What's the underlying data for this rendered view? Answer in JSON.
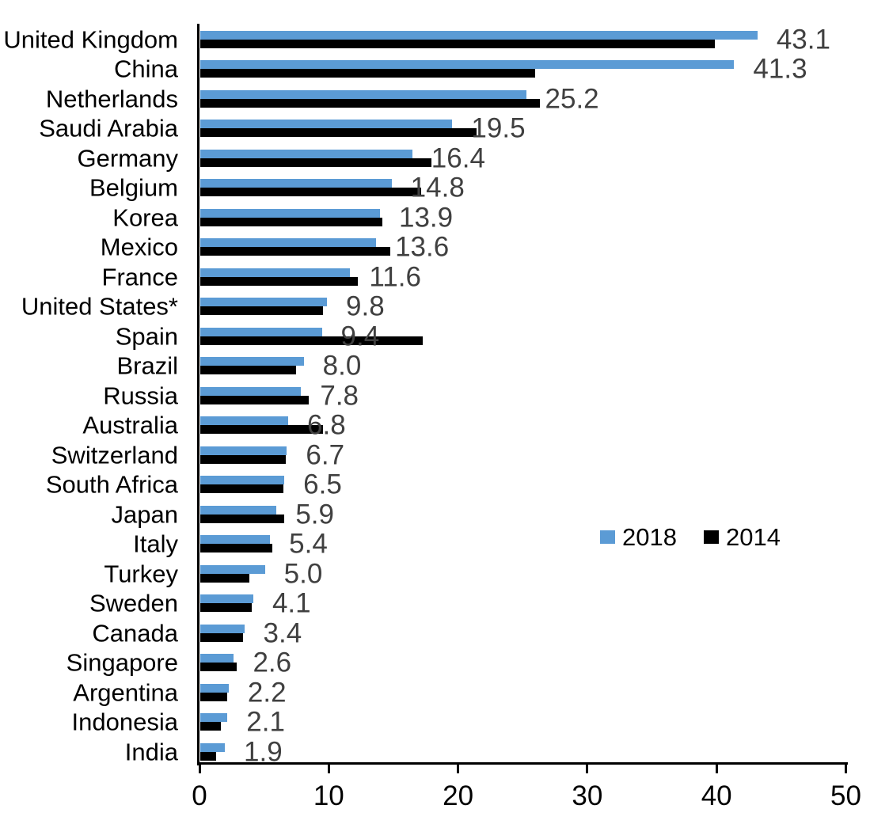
{
  "chart_data": {
    "type": "bar",
    "orientation": "horizontal",
    "title": "",
    "xlabel": "",
    "ylabel": "",
    "categories": [
      "United Kingdom",
      "China",
      "Netherlands",
      "Saudi Arabia",
      "Germany",
      "Belgium",
      "Korea",
      "Mexico",
      "France",
      "United States*",
      "Spain",
      "Brazil",
      "Russia",
      "Australia",
      "Switzerland",
      "South Africa",
      "Japan",
      "Italy",
      "Turkey",
      "Sweden",
      "Canada",
      "Singapore",
      "Argentina",
      "Indonesia",
      "India"
    ],
    "series": [
      {
        "name": "2018",
        "color": "#5B9BD5",
        "values": [
          43.1,
          41.3,
          25.2,
          19.5,
          16.4,
          14.8,
          13.9,
          13.6,
          11.6,
          9.8,
          9.4,
          8.0,
          7.8,
          6.8,
          6.7,
          6.5,
          5.9,
          5.4,
          5.0,
          4.1,
          3.4,
          2.6,
          2.2,
          2.1,
          1.9
        ]
      },
      {
        "name": "2014",
        "color": "#000000",
        "values": [
          39.8,
          25.9,
          26.3,
          21.4,
          17.9,
          17.1,
          14.1,
          14.7,
          12.2,
          9.5,
          17.2,
          7.4,
          8.4,
          9.5,
          6.6,
          6.4,
          6.5,
          5.6,
          3.8,
          4.0,
          3.3,
          2.8,
          2.1,
          1.6,
          1.2
        ]
      }
    ],
    "value_labels": [
      "43.1",
      "41.3",
      "25.2",
      "19.5",
      "16.4",
      "14.8",
      "13.9",
      "13.6",
      "11.6",
      "9.8",
      "9.4",
      "8.0",
      "7.8",
      "6.8",
      "6.7",
      "6.5",
      "5.9",
      "5.4",
      "5.0",
      "4.1",
      "3.4",
      "2.6",
      "2.2",
      "2.1",
      "1.9"
    ],
    "value_label_series": "2018",
    "value_label_color": "#404040",
    "xlim": [
      0,
      50
    ],
    "x_ticks": [
      "0",
      "10",
      "20",
      "30",
      "40",
      "50"
    ],
    "grid": "off",
    "legend": {
      "entries": [
        "2018",
        "2014"
      ],
      "position": "middle-right"
    }
  }
}
